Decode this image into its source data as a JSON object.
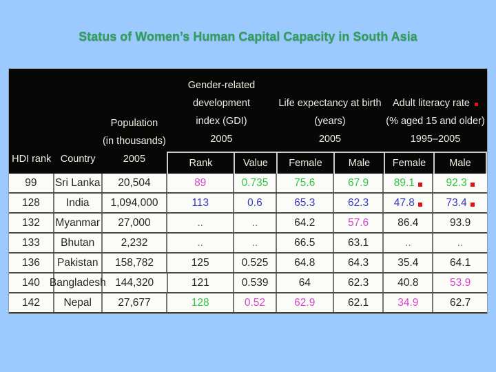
{
  "slide": {
    "title": "Status of Women’s Human Capital Capacity in South Asia"
  },
  "colors": {
    "background": "#9ccafe",
    "title": "#2e9e58",
    "header_bg": "#070707",
    "header_text": "#f2ece2",
    "cell_bg": "#fbfbf8",
    "sub_border": "#cfcfcf",
    "row_border": "#4a4a4a",
    "col_border": "#757575",
    "red_marker": "#e31313",
    "value_magenta": "#d945cd",
    "value_green": "#2fc642",
    "value_blue": "#3a3abd",
    "value_black": "#242424",
    "value_gray": "#6e6e60"
  },
  "table": {
    "header": {
      "hdi_rank": "HDI rank",
      "country": "Country",
      "population_lines": [
        "Population",
        "(in thousands)",
        "2005"
      ],
      "gdi_lines": [
        "Gender-related",
        "development",
        "index (GDI)",
        "2005"
      ],
      "life_lines": [
        "Life expectancy at birth",
        "(years)",
        "2005"
      ],
      "literacy_title": "Adult literacy rate",
      "literacy_rest": [
        "(% aged 15 and older)",
        "1995–2005"
      ],
      "literacy_red_marker": true,
      "sub": [
        "Rank",
        "Value",
        "Female",
        "Male",
        "Female",
        "Male"
      ]
    },
    "rows": [
      {
        "hdi_rank": "99",
        "country": "Sri Lanka",
        "population": "20,504",
        "values": [
          {
            "text": "89",
            "color": "magenta"
          },
          {
            "text": "0.735",
            "color": "green"
          },
          {
            "text": "75.6",
            "color": "green"
          },
          {
            "text": "67.9",
            "color": "green"
          },
          {
            "text": "89.1",
            "color": "green",
            "marker": true
          },
          {
            "text": "92.3",
            "color": "green",
            "marker": true
          }
        ]
      },
      {
        "hdi_rank": "128",
        "country": "India",
        "population": "1,094,000",
        "values": [
          {
            "text": "113",
            "color": "blue"
          },
          {
            "text": "0.6",
            "color": "blue"
          },
          {
            "text": "65.3",
            "color": "blue"
          },
          {
            "text": "62.3",
            "color": "blue"
          },
          {
            "text": "47.8",
            "color": "blue",
            "marker": true
          },
          {
            "text": "73.4",
            "color": "blue",
            "marker": true
          }
        ]
      },
      {
        "hdi_rank": "132",
        "country": "Myanmar",
        "population": "27,000",
        "values": [
          {
            "text": "..",
            "color": "gray"
          },
          {
            "text": "..",
            "color": "gray"
          },
          {
            "text": "64.2",
            "color": "black"
          },
          {
            "text": "57.6",
            "color": "magenta"
          },
          {
            "text": "86.4",
            "color": "black"
          },
          {
            "text": "93.9",
            "color": "black"
          }
        ]
      },
      {
        "hdi_rank": "133",
        "country": "Bhutan",
        "population": "2,232",
        "values": [
          {
            "text": "..",
            "color": "gray"
          },
          {
            "text": "..",
            "color": "gray"
          },
          {
            "text": "66.5",
            "color": "black"
          },
          {
            "text": "63.1",
            "color": "black"
          },
          {
            "text": "..",
            "color": "gray"
          },
          {
            "text": "..",
            "color": "gray"
          }
        ]
      },
      {
        "hdi_rank": "136",
        "country": "Pakistan",
        "population": "158,782",
        "values": [
          {
            "text": "125",
            "color": "black"
          },
          {
            "text": "0.525",
            "color": "black"
          },
          {
            "text": "64.8",
            "color": "black"
          },
          {
            "text": "64.3",
            "color": "black"
          },
          {
            "text": "35.4",
            "color": "black"
          },
          {
            "text": "64.1",
            "color": "black"
          }
        ]
      },
      {
        "hdi_rank": "140",
        "country": "Bangladesh",
        "population": "144,320",
        "values": [
          {
            "text": "121",
            "color": "black"
          },
          {
            "text": "0.539",
            "color": "black"
          },
          {
            "text": "64",
            "color": "black"
          },
          {
            "text": "62.3",
            "color": "black"
          },
          {
            "text": "40.8",
            "color": "black"
          },
          {
            "text": "53.9",
            "color": "magenta"
          }
        ]
      },
      {
        "hdi_rank": "142",
        "country": "Nepal",
        "population": "27,677",
        "values": [
          {
            "text": "128",
            "color": "green"
          },
          {
            "text": "0.52",
            "color": "magenta"
          },
          {
            "text": "62.9",
            "color": "magenta"
          },
          {
            "text": "62.1",
            "color": "black"
          },
          {
            "text": "34.9",
            "color": "magenta"
          },
          {
            "text": "62.7",
            "color": "black"
          }
        ]
      }
    ]
  }
}
